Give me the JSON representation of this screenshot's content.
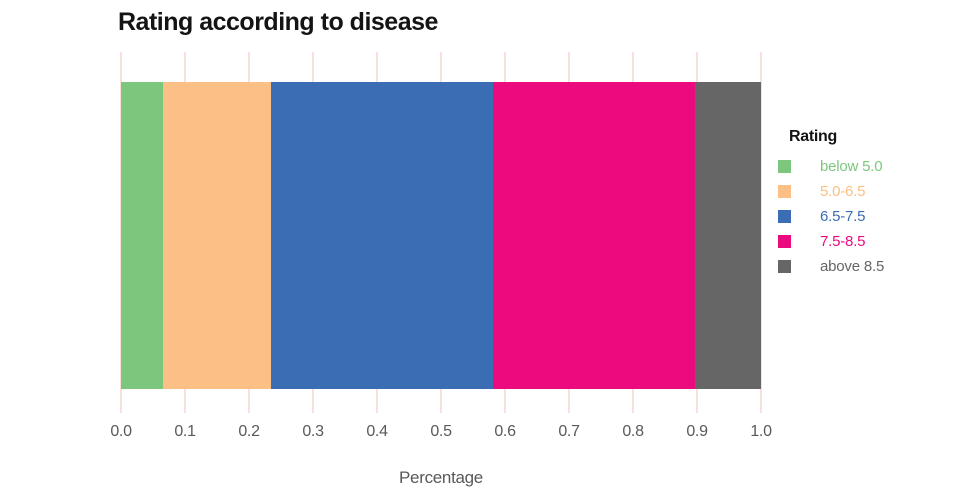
{
  "chart_data": {
    "type": "bar",
    "stacked": true,
    "orientation": "horizontal",
    "title": "Rating according to disease",
    "xlabel": "Percentage",
    "legend_title": "Rating",
    "legend_position": "right",
    "xlim": [
      0.0,
      1.0
    ],
    "xticks": [
      0.0,
      0.1,
      0.2,
      0.3,
      0.4,
      0.5,
      0.6,
      0.7,
      0.8,
      0.9,
      1.0
    ],
    "xtick_labels": [
      "0.0",
      "0.1",
      "0.2",
      "0.3",
      "0.4",
      "0.5",
      "0.6",
      "0.7",
      "0.8",
      "0.9",
      "1.0"
    ],
    "grid": true,
    "grid_color": "#f9e0dc",
    "segments": [
      {
        "label": "below 5.0",
        "value": 0.066,
        "color": "#7cc77d"
      },
      {
        "label": "5.0-6.5",
        "value": 0.169,
        "color": "#fcbf86"
      },
      {
        "label": "6.5-7.5",
        "value": 0.347,
        "color": "#3a6db3"
      },
      {
        "label": "7.5-8.5",
        "value": 0.315,
        "color": "#ec0b7e"
      },
      {
        "label": "above 8.5",
        "value": 0.103,
        "color": "#666666"
      }
    ]
  },
  "colors": {
    "title_text": "#141414",
    "axis_text": "#595959",
    "background": "#ffffff"
  }
}
